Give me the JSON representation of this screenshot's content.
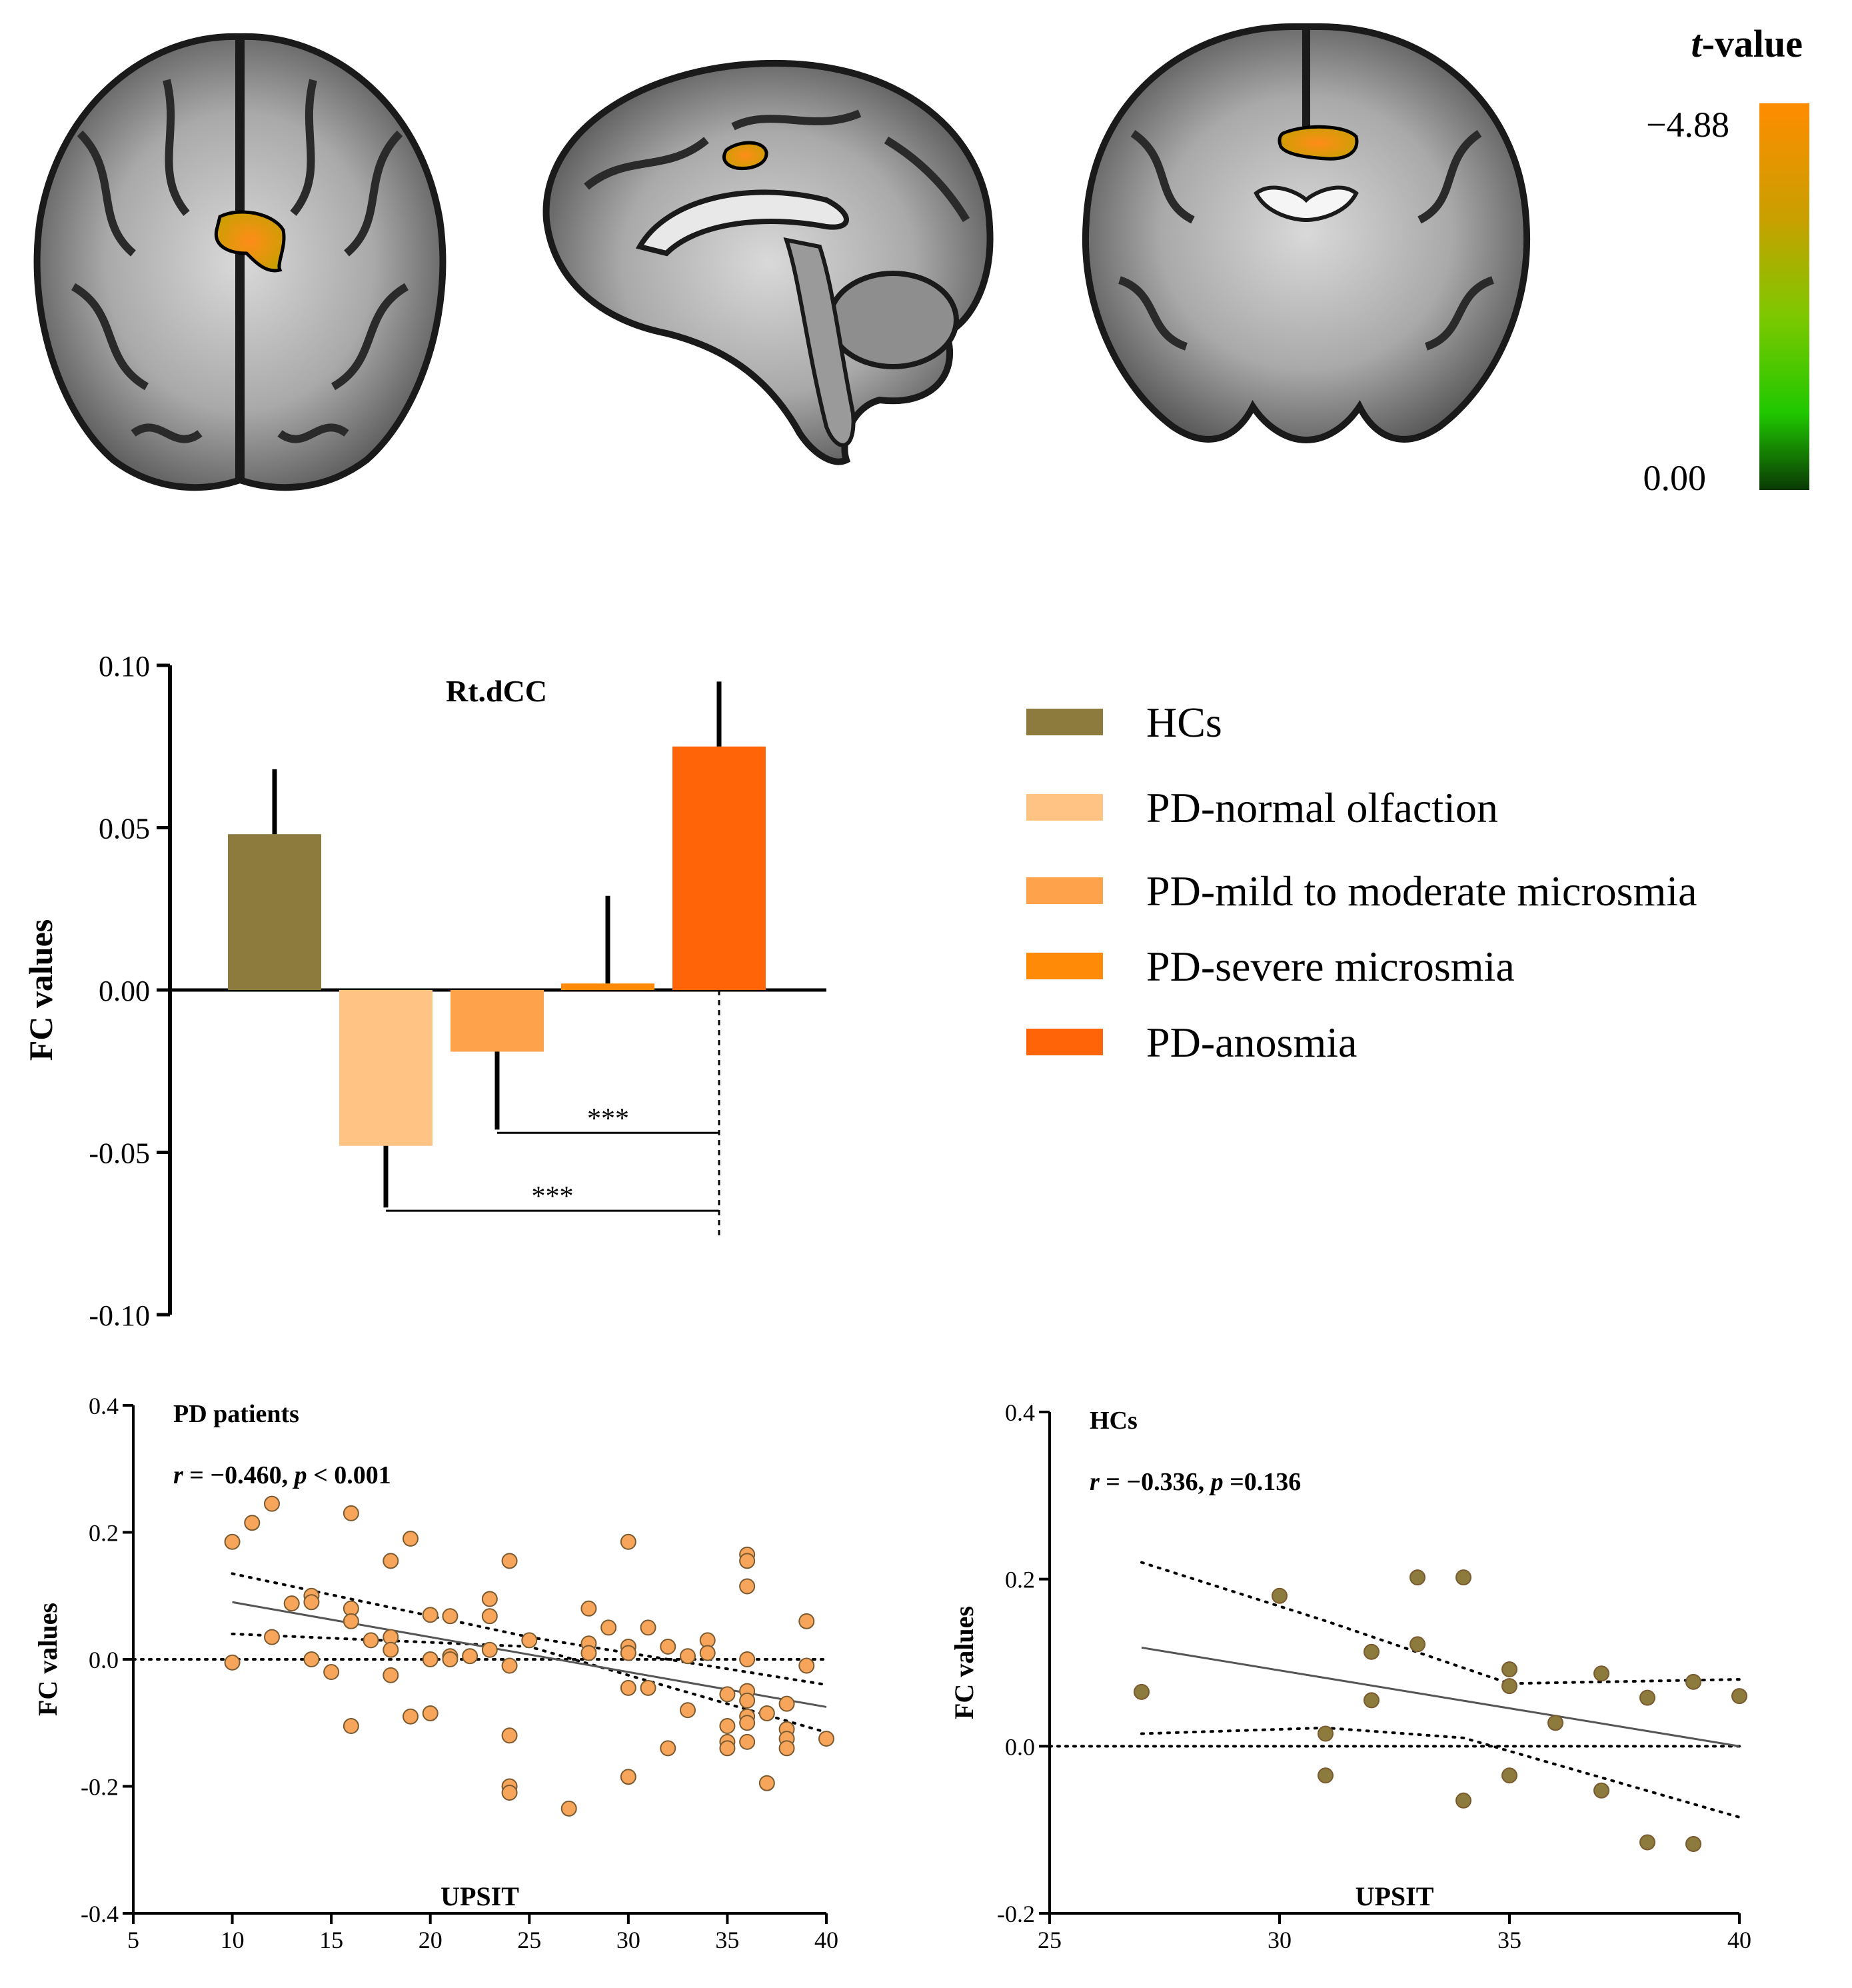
{
  "colorbar": {
    "title_italic": "t",
    "title_rest": "-value",
    "max_label": "−4.88",
    "min_label": "0.00",
    "colors": [
      "#ff8c00",
      "#c8a000",
      "#7ec800",
      "#20c800",
      "#0a3a05"
    ]
  },
  "brain_views": [
    "axial-slice",
    "sagittal-slice",
    "coronal-slice"
  ],
  "chart_data": [
    {
      "type": "bar",
      "title": "Rt.dCC",
      "ylabel": "FC values",
      "xlabel": "",
      "ylim": [
        -0.1,
        0.1
      ],
      "yticks": [
        "0.10",
        "0.05",
        "0.00",
        "-0.05",
        "-0.10"
      ],
      "yticks_values": [
        0.1,
        0.05,
        0.0,
        -0.05,
        -0.1
      ],
      "categories": [
        "HCs",
        "PD-normal olfaction",
        "PD-mild to moderate microsmia",
        "PD-severe microsmia",
        "PD-anosmia"
      ],
      "values": [
        0.048,
        -0.048,
        -0.019,
        0.002,
        0.075
      ],
      "errors": [
        0.02,
        0.019,
        0.024,
        0.027,
        0.02
      ],
      "colors": [
        "#8c7b3c",
        "#ffc384",
        "#ffa24c",
        "#ff8a08",
        "#ff6408"
      ],
      "significance": [
        {
          "from": 2,
          "to": 4,
          "label": "***",
          "y": -0.044
        },
        {
          "from": 1,
          "to": 4,
          "label": "***",
          "y": -0.068
        }
      ]
    },
    {
      "type": "scatter",
      "title": "PD patients",
      "stat_r_label": "r",
      "stat_r_value": " = −0.460, ",
      "stat_p_label": "p",
      "stat_p_value": " < 0.001",
      "xlabel": "UPSIT",
      "ylabel": "FC values",
      "xlim": [
        5,
        40
      ],
      "ylim": [
        -0.4,
        0.4
      ],
      "xticks": [
        "5",
        "10",
        "15",
        "20",
        "25",
        "30",
        "35",
        "40"
      ],
      "xticks_values": [
        5,
        10,
        15,
        20,
        25,
        30,
        35,
        40
      ],
      "yticks": [
        "0.4",
        "0.2",
        "0.0",
        "-0.2",
        "-0.4"
      ],
      "yticks_values": [
        0.4,
        0.2,
        0.0,
        -0.2,
        -0.4
      ],
      "color": "#f6a55a",
      "fit_line": {
        "x": [
          10,
          40
        ],
        "y": [
          0.09,
          -0.075
        ]
      },
      "ci_upper": {
        "x": [
          10,
          25,
          40
        ],
        "y": [
          0.135,
          0.035,
          -0.04
        ]
      },
      "ci_lower": {
        "x": [
          10,
          25,
          40
        ],
        "y": [
          0.04,
          0.02,
          -0.115
        ]
      },
      "points": [
        [
          10,
          0.185
        ],
        [
          10,
          -0.005
        ],
        [
          11,
          0.215
        ],
        [
          12,
          0.245
        ],
        [
          12,
          0.035
        ],
        [
          13,
          0.088
        ],
        [
          14,
          0.1
        ],
        [
          14,
          0.09
        ],
        [
          14,
          0.0
        ],
        [
          15,
          -0.02
        ],
        [
          16,
          0.23
        ],
        [
          16,
          0.08
        ],
        [
          16,
          0.06
        ],
        [
          16,
          -0.105
        ],
        [
          17,
          0.03
        ],
        [
          18,
          0.155
        ],
        [
          18,
          0.035
        ],
        [
          18,
          0.015
        ],
        [
          18,
          -0.025
        ],
        [
          19,
          0.19
        ],
        [
          19,
          -0.09
        ],
        [
          20,
          0.07
        ],
        [
          20,
          0.0
        ],
        [
          20,
          -0.085
        ],
        [
          21,
          0.068
        ],
        [
          21,
          0.005
        ],
        [
          21,
          0.0
        ],
        [
          22,
          0.005
        ],
        [
          23,
          0.095
        ],
        [
          23,
          0.068
        ],
        [
          23,
          0.015
        ],
        [
          24,
          0.155
        ],
        [
          24,
          -0.01
        ],
        [
          24,
          -0.12
        ],
        [
          24,
          -0.2
        ],
        [
          24,
          -0.21
        ],
        [
          25,
          0.03
        ],
        [
          27,
          -0.235
        ],
        [
          28,
          0.08
        ],
        [
          28,
          0.025
        ],
        [
          28,
          0.01
        ],
        [
          29,
          0.05
        ],
        [
          30,
          0.185
        ],
        [
          30,
          0.02
        ],
        [
          30,
          0.01
        ],
        [
          30,
          -0.045
        ],
        [
          30,
          -0.185
        ],
        [
          31,
          0.05
        ],
        [
          31,
          -0.045
        ],
        [
          32,
          0.02
        ],
        [
          32,
          -0.14
        ],
        [
          33,
          0.005
        ],
        [
          33,
          -0.08
        ],
        [
          34,
          0.03
        ],
        [
          34,
          0.01
        ],
        [
          35,
          -0.055
        ],
        [
          35,
          -0.105
        ],
        [
          35,
          -0.13
        ],
        [
          35,
          -0.14
        ],
        [
          36,
          0.165
        ],
        [
          36,
          0.155
        ],
        [
          36,
          0.115
        ],
        [
          36,
          0.0
        ],
        [
          36,
          -0.05
        ],
        [
          36,
          -0.065
        ],
        [
          36,
          -0.09
        ],
        [
          36,
          -0.1
        ],
        [
          36,
          -0.13
        ],
        [
          37,
          -0.085
        ],
        [
          37,
          -0.195
        ],
        [
          38,
          -0.07
        ],
        [
          38,
          -0.11
        ],
        [
          38,
          -0.125
        ],
        [
          38,
          -0.14
        ],
        [
          39,
          0.06
        ],
        [
          39,
          -0.01
        ],
        [
          40,
          -0.125
        ]
      ]
    },
    {
      "type": "scatter",
      "title": "HCs",
      "stat_r_label": "r",
      "stat_r_value": " = −0.336, ",
      "stat_p_label": "p",
      "stat_p_value": " =0.136",
      "xlabel": "UPSIT",
      "ylabel": "FC values",
      "xlim": [
        25,
        40
      ],
      "ylim": [
        -0.2,
        0.4
      ],
      "xticks": [
        "25",
        "30",
        "35",
        "40"
      ],
      "xticks_values": [
        25,
        30,
        35,
        40
      ],
      "yticks": [
        "0.4",
        "0.2",
        "0.0",
        "-0.2"
      ],
      "yticks_values": [
        0.4,
        0.2,
        0.0,
        -0.2
      ],
      "color": "#8c7b3c",
      "fit_line": {
        "x": [
          27,
          40
        ],
        "y": [
          0.118,
          0.0
        ]
      },
      "ci_upper": {
        "x": [
          27,
          31,
          35,
          40
        ],
        "y": [
          0.22,
          0.15,
          0.075,
          0.08
        ]
      },
      "ci_lower": {
        "x": [
          27,
          31,
          34,
          40
        ],
        "y": [
          0.015,
          0.022,
          0.01,
          -0.085
        ]
      },
      "points": [
        [
          27,
          0.065
        ],
        [
          30,
          0.18
        ],
        [
          31,
          0.015
        ],
        [
          31,
          -0.035
        ],
        [
          32,
          0.113
        ],
        [
          32,
          0.055
        ],
        [
          33,
          0.202
        ],
        [
          33,
          0.122
        ],
        [
          34,
          0.202
        ],
        [
          34,
          -0.065
        ],
        [
          35,
          0.092
        ],
        [
          35,
          0.072
        ],
        [
          35,
          -0.035
        ],
        [
          36,
          0.028
        ],
        [
          37,
          0.087
        ],
        [
          37,
          -0.053
        ],
        [
          38,
          0.058
        ],
        [
          38,
          -0.115
        ],
        [
          39,
          0.077
        ],
        [
          39,
          -0.117
        ],
        [
          40,
          0.06
        ]
      ]
    }
  ]
}
